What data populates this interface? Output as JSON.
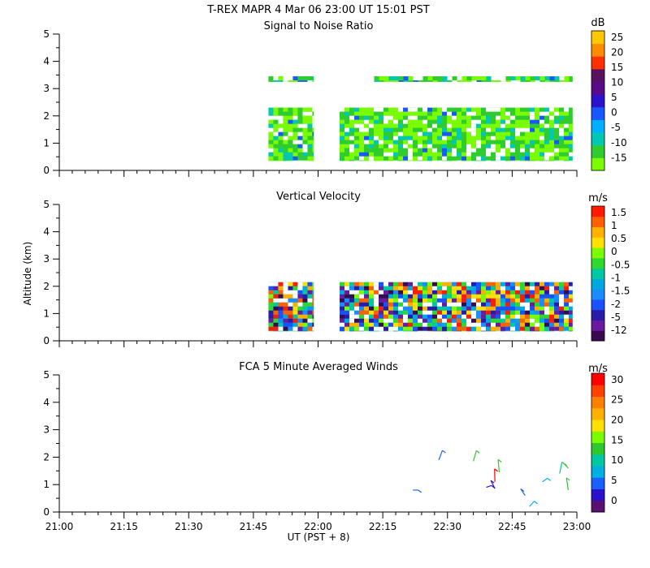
{
  "header": {
    "title": "T-REX   MAPR   4 Mar 06   23:00 UT   15:01   PST"
  },
  "shared_axes": {
    "x_ticks": [
      "21:00",
      "21:15",
      "21:30",
      "21:45",
      "22:00",
      "22:15",
      "22:30",
      "22:45",
      "23:00"
    ],
    "x_range_min": [
      0,
      120
    ],
    "xlabel": "UT  (PST + 8)",
    "ylabel": "Altitude (km)",
    "y_ticks": [
      "0",
      "1",
      "2",
      "3",
      "4",
      "5"
    ],
    "y_range_km": [
      0,
      5
    ]
  },
  "chart_data": [
    {
      "type": "heatmap",
      "id": "snr",
      "title": "Signal to Noise Ratio",
      "unit": "dB",
      "colorbar_labels": [
        "-15",
        "-10",
        "-5",
        "0",
        "5",
        "10",
        "15",
        "20",
        "25"
      ],
      "colorbar_colors": [
        "#7cfc00",
        "#2ecc2e",
        "#00c8b4",
        "#00b0ff",
        "#1858ff",
        "#2c12c8",
        "#5a0a8a",
        "#5a1060",
        "#ff3000",
        "#ff8c00",
        "#ffc800"
      ],
      "data_regions": [
        {
          "t_start": 48.5,
          "t_end": 59.0,
          "alt_min": 0.35,
          "alt_max": 2.3
        },
        {
          "t_start": 65.0,
          "t_end": 119.0,
          "alt_min": 0.35,
          "alt_max": 2.3
        },
        {
          "t_start": 48.5,
          "t_end": 59.0,
          "alt_min": 3.25,
          "alt_max": 3.45
        },
        {
          "t_start": 73.0,
          "t_end": 119.0,
          "alt_min": 3.25,
          "alt_max": 3.45
        }
      ]
    },
    {
      "type": "heatmap",
      "id": "vel",
      "title": "Vertical Velocity",
      "unit": "m/s",
      "colorbar_labels": [
        "-12",
        "-5",
        "-2",
        "-1.5",
        "-1",
        "-0.5",
        "0",
        "0.5",
        "1",
        "1.5"
      ],
      "colorbar_colors": [
        "#3a0a50",
        "#6a1aa0",
        "#2a1aa8",
        "#1a50ff",
        "#1a8cff",
        "#00a8e0",
        "#00c8a0",
        "#2ed82e",
        "#7cfc00",
        "#ffe000",
        "#ffb000",
        "#ff6000",
        "#ff1a00"
      ],
      "data_regions": [
        {
          "t_start": 48.5,
          "t_end": 59.0,
          "alt_min": 0.35,
          "alt_max": 2.15
        },
        {
          "t_start": 65.0,
          "t_end": 119.0,
          "alt_min": 0.35,
          "alt_max": 2.15
        }
      ]
    },
    {
      "type": "scatter",
      "id": "winds",
      "title": "FCA 5 Minute Averaged Winds",
      "unit": "m/s",
      "colorbar_labels": [
        "0",
        "5",
        "10",
        "15",
        "20",
        "25",
        "30"
      ],
      "colorbar_colors": [
        "#5a1070",
        "#2a10c8",
        "#1a60ff",
        "#00b0e0",
        "#00c8a0",
        "#2ec82e",
        "#7cfc00",
        "#ffe000",
        "#ffb000",
        "#ff8000",
        "#ff4000",
        "#ff0000"
      ],
      "barbs": [
        {
          "t": 82,
          "alt": 0.8,
          "speed": 8
        },
        {
          "t": 88,
          "alt": 1.9,
          "speed": 6
        },
        {
          "t": 101,
          "alt": 1.1,
          "speed": 30
        },
        {
          "t": 101,
          "alt": 0.85,
          "speed": 5
        },
        {
          "t": 99,
          "alt": 0.9,
          "speed": 3
        },
        {
          "t": 96,
          "alt": 1.85,
          "speed": 14
        },
        {
          "t": 102,
          "alt": 1.45,
          "speed": 14
        },
        {
          "t": 108,
          "alt": 0.6,
          "speed": 8
        },
        {
          "t": 112,
          "alt": 1.1,
          "speed": 10
        },
        {
          "t": 116,
          "alt": 1.4,
          "speed": 12
        },
        {
          "t": 118,
          "alt": 0.8,
          "speed": 16
        },
        {
          "t": 118,
          "alt": 1.6,
          "speed": 14
        },
        {
          "t": 109,
          "alt": 0.2,
          "speed": 9
        }
      ]
    }
  ]
}
